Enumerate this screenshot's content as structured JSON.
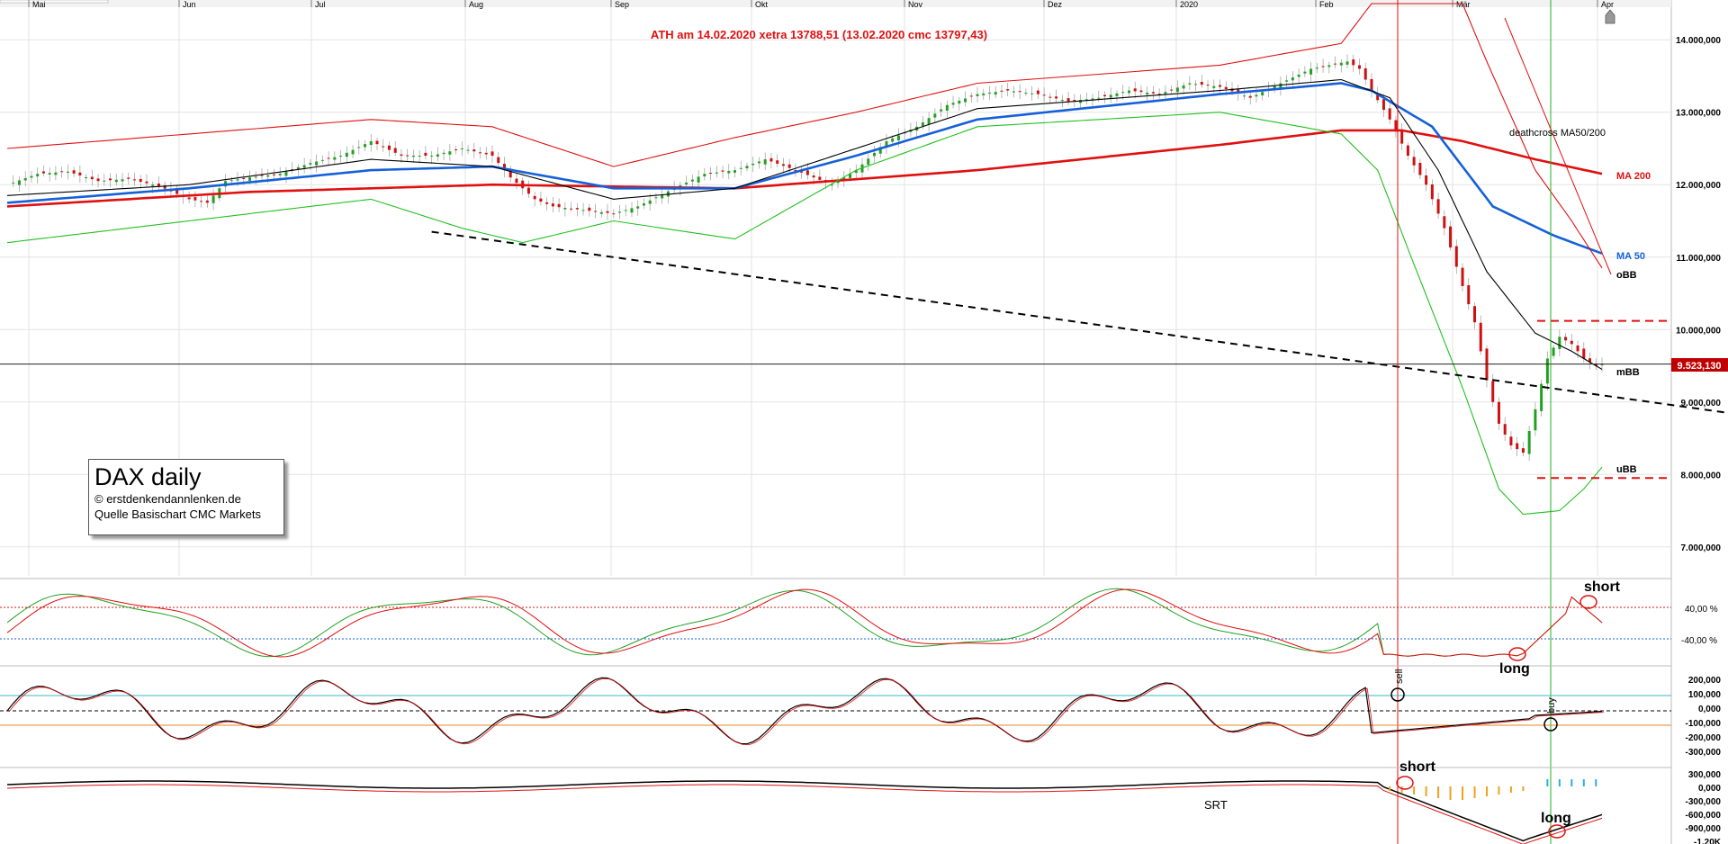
{
  "chart_data": {
    "type": "candlestick",
    "instrument": "DAX daily",
    "annotation_top": "ATH am 14.02.2020 xetra 13788,51 (13.02.2020  cmc 13797,43)",
    "months": [
      "Mai",
      "Jun",
      "Jul",
      "Aug",
      "Sep",
      "Okt",
      "Nov",
      "Dez",
      "2020",
      "Feb",
      "Mär",
      "Apr"
    ],
    "y_axis": {
      "ticks": [
        7000000,
        8000000,
        9000000,
        10000000,
        11000000,
        12000000,
        13000000,
        14000000
      ],
      "tick_labels": [
        "7.000,000",
        "8.000,000",
        "9.000,000",
        "10.000,000",
        "11.000,000",
        "12.000,000",
        "13.000,000",
        "14.000,000"
      ],
      "range": [
        6600000,
        14450000
      ]
    },
    "last_price": 9523130,
    "last_price_label": "9.523,130",
    "price_anchors": [
      [
        0,
        12000
      ],
      [
        5,
        12150
      ],
      [
        10,
        12180
      ],
      [
        15,
        12050
      ],
      [
        20,
        12080
      ],
      [
        25,
        11980
      ],
      [
        30,
        11800
      ],
      [
        33,
        11750
      ],
      [
        36,
        12050
      ],
      [
        40,
        12100
      ],
      [
        45,
        12150
      ],
      [
        50,
        12300
      ],
      [
        55,
        12400
      ],
      [
        60,
        12600
      ],
      [
        65,
        12400
      ],
      [
        70,
        12400
      ],
      [
        75,
        12500
      ],
      [
        80,
        12400
      ],
      [
        83,
        12100
      ],
      [
        87,
        11800
      ],
      [
        90,
        11700
      ],
      [
        95,
        11650
      ],
      [
        100,
        11600
      ],
      [
        104,
        11700
      ],
      [
        110,
        11950
      ],
      [
        115,
        12150
      ],
      [
        120,
        12200
      ],
      [
        125,
        12350
      ],
      [
        130,
        12200
      ],
      [
        133,
        12100
      ],
      [
        136,
        12000
      ],
      [
        140,
        12200
      ],
      [
        145,
        12600
      ],
      [
        150,
        12800
      ],
      [
        155,
        13100
      ],
      [
        160,
        13250
      ],
      [
        165,
        13300
      ],
      [
        170,
        13250
      ],
      [
        175,
        13150
      ],
      [
        180,
        13200
      ],
      [
        185,
        13300
      ],
      [
        190,
        13250
      ],
      [
        195,
        13400
      ],
      [
        200,
        13350
      ],
      [
        205,
        13200
      ],
      [
        210,
        13400
      ],
      [
        215,
        13600
      ],
      [
        218,
        13650
      ],
      [
        221,
        13700
      ],
      [
        223,
        13600
      ],
      [
        225,
        13300
      ],
      [
        228,
        12900
      ],
      [
        231,
        12400
      ],
      [
        234,
        12000
      ],
      [
        237,
        11400
      ],
      [
        240,
        10600
      ],
      [
        242,
        10100
      ],
      [
        244,
        9300
      ],
      [
        246,
        8700
      ],
      [
        248,
        8400
      ],
      [
        250,
        8300
      ],
      [
        252,
        8900
      ],
      [
        254,
        9600
      ],
      [
        256,
        9900
      ],
      [
        258,
        9800
      ],
      [
        260,
        9600
      ],
      [
        262,
        9500
      ],
      [
        263,
        9523
      ]
    ],
    "series": [
      {
        "name": "MA 200",
        "color": "#e01010",
        "anchors": [
          [
            0,
            11700
          ],
          [
            40,
            11900
          ],
          [
            80,
            12000
          ],
          [
            120,
            11950
          ],
          [
            160,
            12200
          ],
          [
            200,
            12550
          ],
          [
            220,
            12750
          ],
          [
            230,
            12750
          ],
          [
            240,
            12600
          ],
          [
            252,
            12350
          ],
          [
            263,
            12150
          ]
        ]
      },
      {
        "name": "MA 50",
        "color": "#1560d8",
        "anchors": [
          [
            0,
            11750
          ],
          [
            30,
            11950
          ],
          [
            60,
            12200
          ],
          [
            80,
            12250
          ],
          [
            100,
            11950
          ],
          [
            120,
            11950
          ],
          [
            140,
            12400
          ],
          [
            160,
            12900
          ],
          [
            200,
            13250
          ],
          [
            220,
            13400
          ],
          [
            225,
            13300
          ],
          [
            235,
            12800
          ],
          [
            245,
            11700
          ],
          [
            255,
            11300
          ],
          [
            263,
            11050
          ]
        ]
      },
      {
        "name": "mBB",
        "color": "#000000",
        "anchors": [
          [
            0,
            11850
          ],
          [
            30,
            12000
          ],
          [
            60,
            12350
          ],
          [
            80,
            12250
          ],
          [
            100,
            11800
          ],
          [
            120,
            11950
          ],
          [
            140,
            12500
          ],
          [
            160,
            13050
          ],
          [
            200,
            13300
          ],
          [
            220,
            13450
          ],
          [
            228,
            13200
          ],
          [
            236,
            12200
          ],
          [
            244,
            10800
          ],
          [
            252,
            9950
          ],
          [
            258,
            9700
          ],
          [
            263,
            9450
          ]
        ]
      },
      {
        "name": "oBB",
        "color": "#e01010",
        "anchors": [
          [
            0,
            12500
          ],
          [
            30,
            12700
          ],
          [
            60,
            12900
          ],
          [
            80,
            12800
          ],
          [
            100,
            12250
          ],
          [
            120,
            12650
          ],
          [
            140,
            13000
          ],
          [
            160,
            13400
          ],
          [
            200,
            13650
          ],
          [
            220,
            13950
          ],
          [
            225,
            14500
          ],
          [
            240,
            14500
          ],
          [
            244,
            13700
          ],
          [
            252,
            12200
          ],
          [
            258,
            11500
          ],
          [
            263,
            10850
          ]
        ]
      },
      {
        "name": "uBB",
        "color": "#22c022",
        "anchors": [
          [
            0,
            11200
          ],
          [
            30,
            11500
          ],
          [
            60,
            11800
          ],
          [
            75,
            11400
          ],
          [
            85,
            11200
          ],
          [
            100,
            11500
          ],
          [
            120,
            11250
          ],
          [
            140,
            12200
          ],
          [
            160,
            12800
          ],
          [
            200,
            13000
          ],
          [
            220,
            12700
          ],
          [
            226,
            12200
          ],
          [
            232,
            10900
          ],
          [
            240,
            9200
          ],
          [
            246,
            7800
          ],
          [
            250,
            7450
          ],
          [
            256,
            7500
          ],
          [
            260,
            7800
          ],
          [
            263,
            8100
          ]
        ]
      }
    ],
    "line_labels": {
      "deathcross": "deathcross MA50/200",
      "ma200": "MA 200",
      "ma50": "MA 50",
      "obb": "oBB",
      "mbb": "mBB",
      "ubb": "uBB"
    },
    "trendline": {
      "from": [
        70,
        11350
      ],
      "to": [
        273,
        8850
      ]
    },
    "support_resistance": [
      10120000,
      7950000
    ],
    "panel_stochastic": {
      "levels": [
        "40,00 %",
        "-40,00 %"
      ],
      "label_short": "short",
      "label_long": "long"
    },
    "panel_oscillator": {
      "tick_labels": [
        "200,000",
        "100,000",
        "0,000",
        "-100,000",
        "-200,000",
        "-300,000"
      ],
      "label_sell": "sell",
      "label_buy": "buy"
    },
    "panel_srt": {
      "name": "SRT",
      "tick_labels": [
        "300,000",
        "0,000",
        "-300,000",
        "-600,000",
        "-900,000",
        "-1,20K"
      ],
      "label_short": "short",
      "label_long": "long"
    },
    "legend": {
      "title": "DAX daily",
      "line1": "© erstdenkendannlenken.de",
      "line2": "Quelle Basischart CMC Markets"
    },
    "colors": {
      "bull_candle": "#22a022",
      "bear_candle": "#d01010",
      "ma200": "#e01010",
      "ma50": "#1560d8",
      "text_red": "#e01010"
    }
  }
}
